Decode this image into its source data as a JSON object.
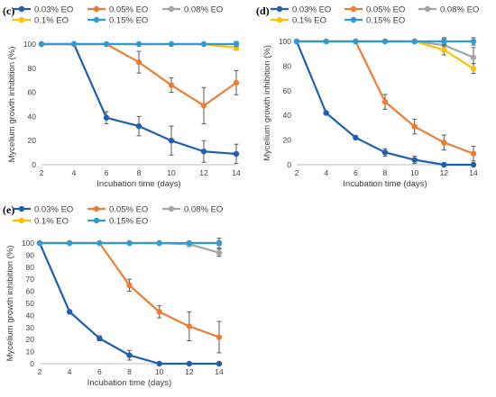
{
  "chart_data": [
    {
      "panel": "(c)",
      "type": "line",
      "xlabel": "Incubation time (days)",
      "ylabel": "Mycelium growth inhibition (%)",
      "x": [
        2,
        4,
        6,
        8,
        10,
        12,
        14
      ],
      "xlim": [
        2,
        14
      ],
      "ylim": [
        0,
        100
      ],
      "yticks": [
        0,
        20,
        40,
        60,
        80,
        100
      ],
      "xticks": [
        2,
        4,
        6,
        8,
        10,
        12,
        14
      ],
      "grid": false,
      "legend": "top",
      "series": [
        {
          "name": "0.03% EO",
          "color": "#1f5fb0",
          "values": [
            100,
            100,
            39,
            32,
            20,
            11,
            9
          ],
          "errors": [
            0,
            0,
            5,
            8,
            12,
            9,
            8
          ]
        },
        {
          "name": "0.05% EO",
          "color": "#ed7d31",
          "values": [
            100,
            100,
            100,
            85,
            66,
            49,
            68
          ],
          "errors": [
            0,
            0,
            0,
            9,
            6,
            15,
            10
          ]
        },
        {
          "name": "0.08% EO",
          "color": "#a5a5a5",
          "values": [
            100,
            100,
            100,
            100,
            100,
            100,
            100
          ],
          "errors": [
            0,
            0,
            0,
            0,
            0,
            0,
            2
          ]
        },
        {
          "name": "0.1% EO",
          "color": "#ffc000",
          "values": [
            100,
            100,
            100,
            100,
            100,
            100,
            97
          ],
          "errors": [
            0,
            0,
            0,
            0,
            0,
            0,
            2
          ]
        },
        {
          "name": "0.15% EO",
          "color": "#2e9bd6",
          "values": [
            100,
            100,
            100,
            100,
            100,
            100,
            100
          ],
          "errors": [
            0,
            0,
            0,
            0,
            0,
            0,
            2
          ]
        }
      ]
    },
    {
      "panel": "(d)",
      "type": "line",
      "xlabel": "Incubation time (days)",
      "ylabel": "Mycelium growth inhibition (%)",
      "x": [
        2,
        4,
        6,
        8,
        10,
        12,
        14
      ],
      "xlim": [
        2,
        14
      ],
      "ylim": [
        0,
        100
      ],
      "yticks": [
        0,
        20,
        40,
        60,
        80,
        100
      ],
      "xticks": [
        2,
        4,
        6,
        8,
        10,
        12,
        14
      ],
      "grid": false,
      "legend": "top",
      "series": [
        {
          "name": "0.03% EO",
          "color": "#1f5fb0",
          "values": [
            100,
            42,
            22,
            10,
            4,
            0,
            0
          ],
          "errors": [
            0,
            0,
            0,
            3,
            3,
            0,
            0
          ]
        },
        {
          "name": "0.05% EO",
          "color": "#ed7d31",
          "values": [
            100,
            100,
            100,
            51,
            31,
            18,
            9
          ],
          "errors": [
            0,
            0,
            0,
            6,
            6,
            6,
            6
          ]
        },
        {
          "name": "0.08% EO",
          "color": "#a5a5a5",
          "values": [
            100,
            100,
            100,
            100,
            100,
            97,
            87
          ],
          "errors": [
            0,
            0,
            0,
            0,
            0,
            5,
            8
          ]
        },
        {
          "name": "0.1% EO",
          "color": "#ffc000",
          "values": [
            100,
            100,
            100,
            100,
            100,
            93,
            78
          ],
          "errors": [
            0,
            0,
            0,
            0,
            0,
            4,
            4
          ]
        },
        {
          "name": "0.15% EO",
          "color": "#2e9bd6",
          "values": [
            100,
            100,
            100,
            100,
            100,
            100,
            100
          ],
          "errors": [
            0,
            0,
            0,
            0,
            0,
            3,
            3
          ]
        }
      ]
    },
    {
      "panel": "(e)",
      "type": "line",
      "xlabel": "Incubation time (days)",
      "ylabel": "Mycelium growth inhibition (%)",
      "x": [
        2,
        4,
        6,
        8,
        10,
        12,
        14
      ],
      "xlim": [
        2,
        14
      ],
      "ylim": [
        0,
        100
      ],
      "yticks": [
        0,
        10,
        20,
        30,
        40,
        50,
        60,
        70,
        80,
        90,
        100
      ],
      "xticks": [
        2,
        4,
        6,
        8,
        10,
        12,
        14
      ],
      "grid": false,
      "legend": "top",
      "series": [
        {
          "name": "0.03% EO",
          "color": "#1f5fb0",
          "values": [
            100,
            43,
            21,
            7,
            0,
            0,
            0
          ],
          "errors": [
            0,
            0,
            2,
            4,
            1,
            0,
            0
          ]
        },
        {
          "name": "0.05% EO",
          "color": "#ed7d31",
          "values": [
            100,
            100,
            100,
            65,
            43,
            31,
            22
          ],
          "errors": [
            0,
            0,
            0,
            5,
            5,
            12,
            13
          ]
        },
        {
          "name": "0.08% EO",
          "color": "#a5a5a5",
          "values": [
            100,
            100,
            100,
            100,
            100,
            99,
            92
          ],
          "errors": [
            0,
            0,
            0,
            0,
            0,
            2,
            3
          ]
        },
        {
          "name": "0.1% EO",
          "color": "#ffc000",
          "values": [
            100,
            100,
            100,
            100,
            100,
            100,
            100
          ],
          "errors": [
            0,
            0,
            0,
            0,
            0,
            0,
            2
          ]
        },
        {
          "name": "0.15% EO",
          "color": "#2e9bd6",
          "values": [
            100,
            100,
            100,
            100,
            100,
            100,
            100
          ],
          "errors": [
            0,
            0,
            0,
            0,
            0,
            0,
            4
          ]
        }
      ]
    }
  ]
}
